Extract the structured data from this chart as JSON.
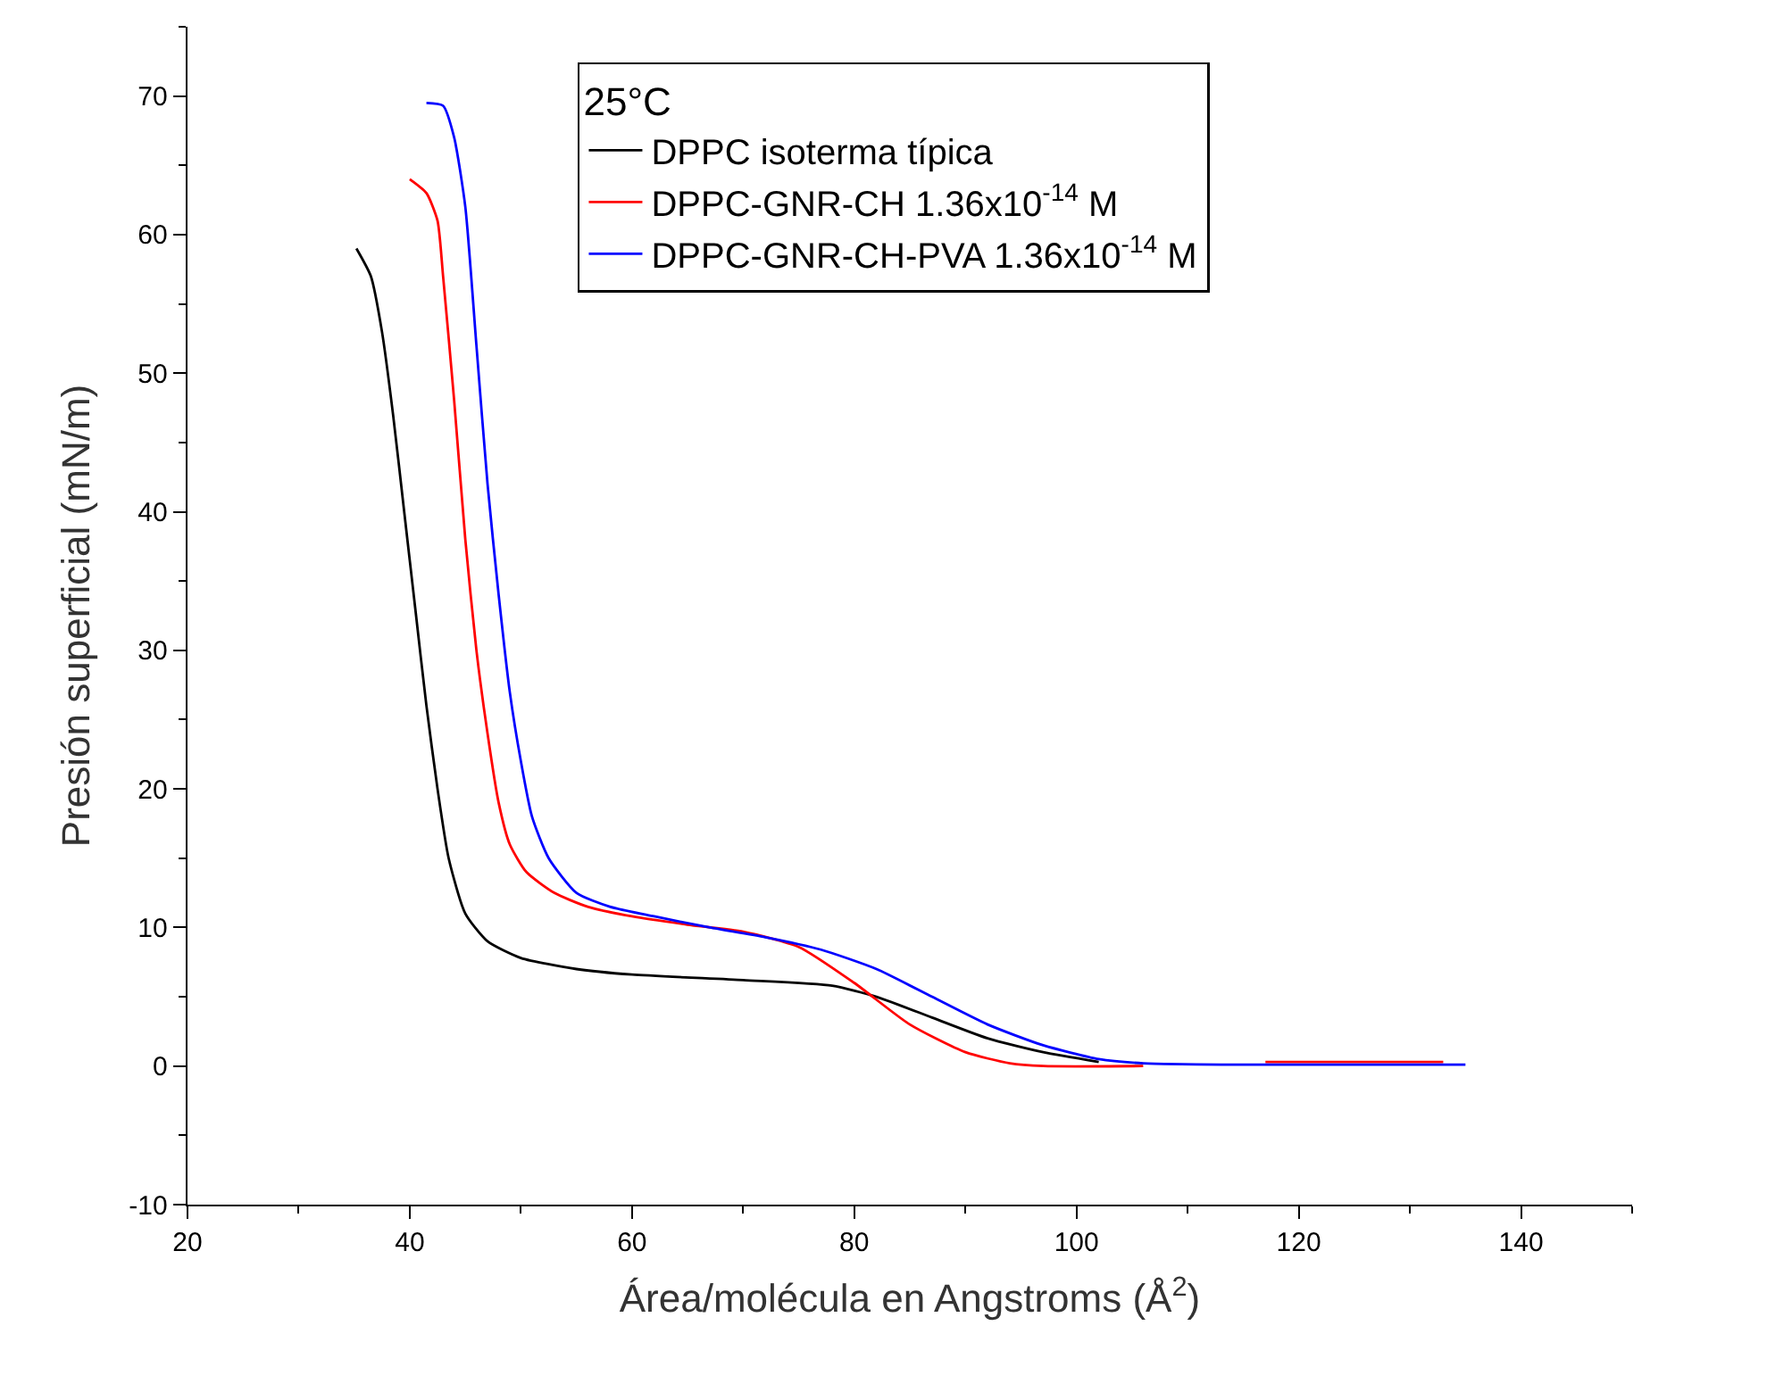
{
  "chart_data": {
    "type": "line",
    "xlabel": "Área/molécula en Angstroms (Å$^{2}$)",
    "ylabel": "Presión superficial (mN/m)",
    "legend_title": "25°C",
    "xlim": [
      20,
      150
    ],
    "xticks": [
      20,
      40,
      60,
      80,
      100,
      120,
      140
    ],
    "ylim": [
      -10,
      75
    ],
    "yticks": [
      -10,
      0,
      10,
      20,
      30,
      40,
      50,
      60,
      70
    ],
    "legend": "top right",
    "line_style": "solid",
    "marker": "none",
    "series": [
      {
        "name": "DPPC isoterma típica",
        "color": "#000000",
        "x": [
          35.2,
          36.5,
          37.5,
          38.5,
          39.5,
          40.5,
          41.5,
          42.5,
          43.5,
          45,
          47,
          50,
          55,
          60,
          70,
          78,
          82,
          87,
          92,
          97,
          102
        ],
        "values": [
          59,
          57,
          53,
          47,
          40,
          33,
          26,
          20,
          15,
          11,
          9,
          7.8,
          7,
          6.6,
          6.2,
          5.8,
          5,
          3.5,
          2,
          1,
          0.3
        ]
      },
      {
        "name": "DPPC-GNR-CH 1.36x10$^{-14}$ M",
        "color": "#ff0000",
        "x": [
          40,
          41.5,
          42.5,
          43,
          44,
          45,
          46,
          47,
          48,
          49,
          50.5,
          53,
          56,
          60,
          65,
          70,
          75,
          80,
          85,
          90,
          94,
          97,
          106,
          112,
          117,
          125,
          133
        ],
        "values": [
          64,
          63,
          61,
          57,
          48,
          38,
          30,
          24,
          19,
          16,
          14,
          12.5,
          11.5,
          10.8,
          10.2,
          9.7,
          8.6,
          6,
          3,
          1,
          0.2,
          0,
          0,
          null,
          0.3,
          0.3,
          0.3
        ]
      },
      {
        "name": "DPPC-GNR-CH-PVA 1.36x10$^{-14}$ M",
        "color": "#0000ff",
        "x": [
          41.5,
          43,
          44,
          45,
          46,
          47,
          48,
          49,
          50,
          51,
          52.5,
          55,
          58,
          62,
          67,
          72,
          77,
          82,
          87,
          92,
          97,
          102,
          106,
          115,
          135
        ],
        "values": [
          69.5,
          69.3,
          67,
          62,
          52,
          42,
          34,
          27,
          22,
          18,
          15,
          12.5,
          11.5,
          10.8,
          10,
          9.3,
          8.4,
          7,
          5,
          3,
          1.5,
          0.5,
          0.2,
          0.1,
          0.1
        ]
      }
    ]
  }
}
